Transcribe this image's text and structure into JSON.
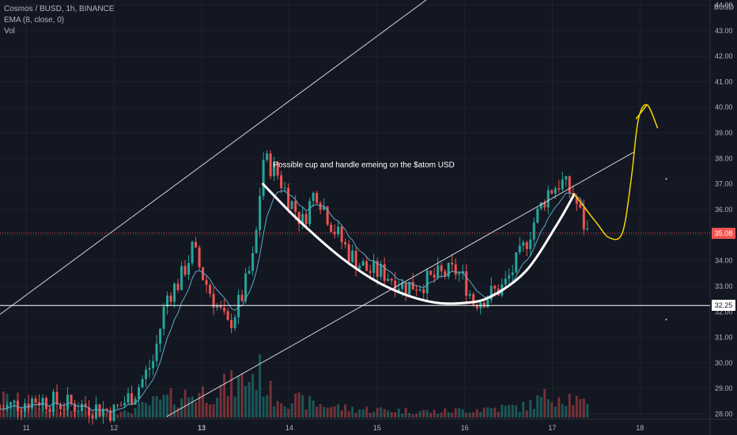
{
  "header": {
    "symbol": "Cosmos / BUSD, 1h, BINANCE",
    "ema": "EMA (8, close, 0)",
    "vol": "Vol",
    "currency": "BUSD"
  },
  "colors": {
    "background": "#131722",
    "up": "#26a69a",
    "down": "#ef5350",
    "text": "#b2b5be",
    "ema": "#5fa9c8",
    "annotation_curve": "#ffffff",
    "annotation_marker": "#f5d300",
    "current_price_line": "#ef5350"
  },
  "chart_data": {
    "type": "candlestick",
    "title": "Cosmos / BUSD, 1h, BINANCE",
    "y_axis": {
      "min": 27.8,
      "max": 44.2,
      "ticks": [
        "28.00",
        "29.00",
        "30.00",
        "31.00",
        "32.00",
        "33.00",
        "34.00",
        "35.00",
        "36.00",
        "37.00",
        "38.00",
        "39.00",
        "40.00",
        "41.00",
        "42.00",
        "43.00",
        "44.00"
      ]
    },
    "x_axis": {
      "labels": [
        {
          "text": "11",
          "x": 10.8
        },
        {
          "text": "12",
          "x": 11.8
        },
        {
          "text": "13",
          "x": 12.8
        },
        {
          "text": "14",
          "x": 13.8
        },
        {
          "text": "15",
          "x": 14.8
        },
        {
          "text": "16",
          "x": 15.8
        },
        {
          "text": "17",
          "x": 16.8
        },
        {
          "text": "18",
          "x": 17.8
        }
      ],
      "min": 10.5,
      "max": 18.6
    },
    "price_points": [
      {
        "x": 10.5,
        "y": 28.2
      },
      {
        "x": 10.9,
        "y": 28.6
      },
      {
        "x": 11.2,
        "y": 28.4
      },
      {
        "x": 11.5,
        "y": 28.3
      },
      {
        "x": 11.8,
        "y": 28.1
      },
      {
        "x": 12.05,
        "y": 28.9
      },
      {
        "x": 12.25,
        "y": 30.1
      },
      {
        "x": 12.4,
        "y": 32.6
      },
      {
        "x": 12.55,
        "y": 33.2
      },
      {
        "x": 12.7,
        "y": 34.5
      },
      {
        "x": 12.8,
        "y": 33.5
      },
      {
        "x": 12.95,
        "y": 32.4
      },
      {
        "x": 13.1,
        "y": 31.4
      },
      {
        "x": 13.25,
        "y": 32.5
      },
      {
        "x": 13.4,
        "y": 34.2
      },
      {
        "x": 13.5,
        "y": 38.0
      },
      {
        "x": 13.65,
        "y": 37.5
      },
      {
        "x": 13.8,
        "y": 36.4
      },
      {
        "x": 13.95,
        "y": 35.5
      },
      {
        "x": 14.1,
        "y": 36.8
      },
      {
        "x": 14.3,
        "y": 35.3
      },
      {
        "x": 14.5,
        "y": 34.2
      },
      {
        "x": 14.7,
        "y": 33.6
      },
      {
        "x": 14.9,
        "y": 33.5
      },
      {
        "x": 15.1,
        "y": 33.0
      },
      {
        "x": 15.3,
        "y": 33.1
      },
      {
        "x": 15.5,
        "y": 33.4
      },
      {
        "x": 15.7,
        "y": 33.6
      },
      {
        "x": 15.8,
        "y": 33.2
      },
      {
        "x": 15.9,
        "y": 32.4
      },
      {
        "x": 16.05,
        "y": 32.6
      },
      {
        "x": 16.25,
        "y": 33.0
      },
      {
        "x": 16.45,
        "y": 34.3
      },
      {
        "x": 16.6,
        "y": 35.6
      },
      {
        "x": 16.75,
        "y": 36.7
      },
      {
        "x": 16.9,
        "y": 37.1
      },
      {
        "x": 17.05,
        "y": 36.5
      },
      {
        "x": 17.15,
        "y": 35.5
      },
      {
        "x": 17.2,
        "y": 35.1
      }
    ],
    "horizontal_lines": [
      {
        "price": 32.25,
        "label": "32.25",
        "color": "#ffffff"
      },
      {
        "price": 35.08,
        "label": "35.08",
        "color": "#ef5350"
      }
    ],
    "trend_lines": [
      {
        "from": [
          10.5,
          31.9
        ],
        "to": [
          15.4,
          44.3
        ]
      },
      {
        "from": [
          12.4,
          27.9
        ],
        "to": [
          17.73,
          38.25
        ]
      }
    ],
    "annotations": [
      {
        "text": "Possible cup and handle emeing on the $atom USD",
        "x": 14.65,
        "y": 37.65
      }
    ],
    "cup_curve": [
      [
        13.5,
        37.0
      ],
      [
        13.9,
        35.6
      ],
      [
        14.4,
        34.1
      ],
      [
        14.9,
        33.0
      ],
      [
        15.4,
        32.4
      ],
      [
        15.8,
        32.35
      ],
      [
        16.1,
        32.6
      ],
      [
        16.5,
        33.6
      ],
      [
        16.85,
        35.4
      ],
      [
        17.05,
        36.6
      ]
    ],
    "handle_curve": [
      [
        17.05,
        36.6
      ],
      [
        17.3,
        35.5
      ],
      [
        17.45,
        34.9
      ],
      [
        17.6,
        35.1
      ],
      [
        17.7,
        37.2
      ],
      [
        17.78,
        39.5
      ],
      [
        17.88,
        40.1
      ],
      [
        18.0,
        39.2
      ]
    ],
    "volume_profile": [
      {
        "x": 10.6,
        "v": 0.25
      },
      {
        "x": 10.9,
        "v": 0.18
      },
      {
        "x": 11.2,
        "v": 0.12
      },
      {
        "x": 11.5,
        "v": 0.08
      },
      {
        "x": 11.9,
        "v": 0.06
      },
      {
        "x": 12.3,
        "v": 0.22
      },
      {
        "x": 12.6,
        "v": 0.3
      },
      {
        "x": 12.9,
        "v": 0.35
      },
      {
        "x": 13.2,
        "v": 0.45
      },
      {
        "x": 13.45,
        "v": 0.62
      },
      {
        "x": 13.6,
        "v": 0.3
      },
      {
        "x": 14.0,
        "v": 0.2
      },
      {
        "x": 14.5,
        "v": 0.12
      },
      {
        "x": 15.0,
        "v": 0.1
      },
      {
        "x": 15.5,
        "v": 0.08
      },
      {
        "x": 16.0,
        "v": 0.12
      },
      {
        "x": 16.5,
        "v": 0.15
      },
      {
        "x": 16.8,
        "v": 0.32
      },
      {
        "x": 17.0,
        "v": 0.28
      },
      {
        "x": 17.3,
        "v": 0.08
      }
    ]
  }
}
